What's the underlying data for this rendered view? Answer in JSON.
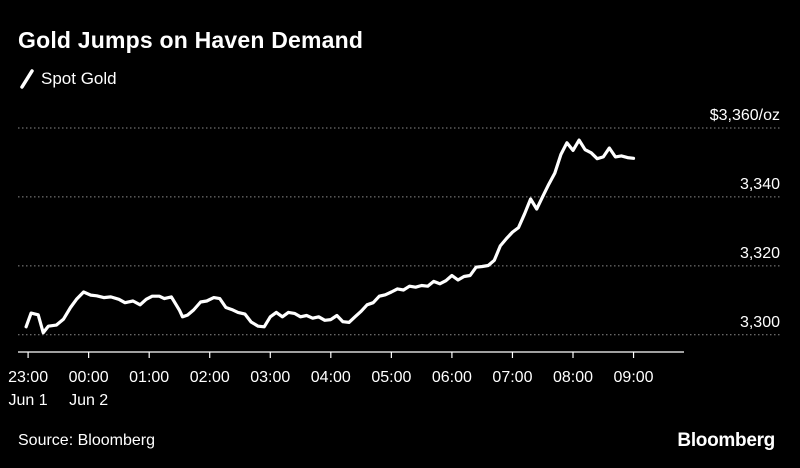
{
  "header": {
    "title": "Gold Jumps on Haven Demand",
    "legend_label": "Spot Gold"
  },
  "footer": {
    "source": "Source: Bloomberg",
    "brand": "Bloomberg"
  },
  "colors": {
    "background": "#000000",
    "line": "#ffffff",
    "grid": "#8a8a8a",
    "text": "#ffffff"
  },
  "chart_data": {
    "type": "line",
    "title": "Gold Jumps on Haven Demand",
    "series": [
      {
        "name": "Spot Gold",
        "points": [
          [
            "22:58",
            3302.3
          ],
          [
            "23:03",
            3306.3
          ],
          [
            "23:10",
            3305.8
          ],
          [
            "23:15",
            3300.6
          ],
          [
            "23:20",
            3302.5
          ],
          [
            "23:28",
            3302.8
          ],
          [
            "23:35",
            3304.5
          ],
          [
            "23:42",
            3307.9
          ],
          [
            "23:48",
            3310.3
          ],
          [
            "23:55",
            3312.4
          ],
          [
            "00:02",
            3311.5
          ],
          [
            "00:08",
            3311.3
          ],
          [
            "00:15",
            3310.8
          ],
          [
            "00:22",
            3311.0
          ],
          [
            "00:30",
            3310.3
          ],
          [
            "00:36",
            3309.3
          ],
          [
            "00:44",
            3309.8
          ],
          [
            "00:51",
            3308.7
          ],
          [
            "00:57",
            3310.3
          ],
          [
            "01:03",
            3311.2
          ],
          [
            "01:10",
            3311.2
          ],
          [
            "01:15",
            3310.5
          ],
          [
            "01:22",
            3311.0
          ],
          [
            "01:30",
            3307.1
          ],
          [
            "01:33",
            3305.2
          ],
          [
            "01:38",
            3305.7
          ],
          [
            "01:44",
            3307.2
          ],
          [
            "01:51",
            3309.5
          ],
          [
            "01:57",
            3309.8
          ],
          [
            "02:04",
            3310.8
          ],
          [
            "02:10",
            3310.5
          ],
          [
            "02:16",
            3307.9
          ],
          [
            "02:22",
            3307.3
          ],
          [
            "02:28",
            3306.5
          ],
          [
            "02:35",
            3306.0
          ],
          [
            "02:41",
            3303.7
          ],
          [
            "02:48",
            3302.5
          ],
          [
            "02:54",
            3302.3
          ],
          [
            "03:00",
            3305.2
          ],
          [
            "03:06",
            3306.5
          ],
          [
            "03:12",
            3305.2
          ],
          [
            "03:18",
            3306.5
          ],
          [
            "03:24",
            3306.2
          ],
          [
            "03:30",
            3305.2
          ],
          [
            "03:36",
            3305.6
          ],
          [
            "03:42",
            3304.8
          ],
          [
            "03:48",
            3305.2
          ],
          [
            "03:54",
            3304.2
          ],
          [
            "04:00",
            3304.4
          ],
          [
            "04:06",
            3305.6
          ],
          [
            "04:12",
            3303.8
          ],
          [
            "04:18",
            3303.6
          ],
          [
            "04:24",
            3305.2
          ],
          [
            "04:30",
            3306.8
          ],
          [
            "04:36",
            3308.7
          ],
          [
            "04:42",
            3309.3
          ],
          [
            "04:48",
            3311.2
          ],
          [
            "04:54",
            3311.6
          ],
          [
            "05:00",
            3312.4
          ],
          [
            "05:06",
            3313.3
          ],
          [
            "05:12",
            3313.0
          ],
          [
            "05:18",
            3314.1
          ],
          [
            "05:24",
            3313.8
          ],
          [
            "05:30",
            3314.3
          ],
          [
            "05:36",
            3314.1
          ],
          [
            "05:42",
            3315.5
          ],
          [
            "05:48",
            3314.8
          ],
          [
            "05:54",
            3315.7
          ],
          [
            "06:00",
            3317.2
          ],
          [
            "06:06",
            3315.9
          ],
          [
            "06:12",
            3316.9
          ],
          [
            "06:18",
            3317.2
          ],
          [
            "06:24",
            3319.6
          ],
          [
            "06:30",
            3319.8
          ],
          [
            "06:36",
            3320.1
          ],
          [
            "06:42",
            3321.6
          ],
          [
            "06:48",
            3325.8
          ],
          [
            "06:54",
            3327.9
          ],
          [
            "07:00",
            3329.8
          ],
          [
            "07:06",
            3331.1
          ],
          [
            "07:12",
            3335.1
          ],
          [
            "07:18",
            3339.4
          ],
          [
            "07:24",
            3336.5
          ],
          [
            "07:30",
            3340.1
          ],
          [
            "07:36",
            3343.7
          ],
          [
            "07:42",
            3346.9
          ],
          [
            "07:48",
            3352.3
          ],
          [
            "07:54",
            3355.7
          ],
          [
            "08:00",
            3353.5
          ],
          [
            "08:06",
            3356.5
          ],
          [
            "08:12",
            3353.7
          ],
          [
            "08:18",
            3352.8
          ],
          [
            "08:24",
            3351.1
          ],
          [
            "08:30",
            3351.6
          ],
          [
            "08:36",
            3354.2
          ],
          [
            "08:42",
            3351.6
          ],
          [
            "08:48",
            3351.9
          ],
          [
            "08:54",
            3351.4
          ],
          [
            "09:00",
            3351.2
          ]
        ]
      }
    ],
    "x_ticks": [
      {
        "time": "23:00",
        "label": "23:00",
        "sublabel": "Jun 1"
      },
      {
        "time": "00:00",
        "label": "00:00",
        "sublabel": "Jun 2"
      },
      {
        "time": "01:00",
        "label": "01:00",
        "sublabel": ""
      },
      {
        "time": "02:00",
        "label": "02:00",
        "sublabel": ""
      },
      {
        "time": "03:00",
        "label": "03:00",
        "sublabel": ""
      },
      {
        "time": "04:00",
        "label": "04:00",
        "sublabel": ""
      },
      {
        "time": "05:00",
        "label": "05:00",
        "sublabel": ""
      },
      {
        "time": "06:00",
        "label": "06:00",
        "sublabel": ""
      },
      {
        "time": "07:00",
        "label": "07:00",
        "sublabel": ""
      },
      {
        "time": "08:00",
        "label": "08:00",
        "sublabel": ""
      },
      {
        "time": "09:00",
        "label": "09:00",
        "sublabel": ""
      }
    ],
    "x_range": [
      "22:50",
      "09:50"
    ],
    "y_ticks": [
      {
        "value": 3300,
        "label": "3,300"
      },
      {
        "value": 3320,
        "label": "3,320"
      },
      {
        "value": 3340,
        "label": "3,340"
      },
      {
        "value": 3360,
        "label": "$3,360/oz"
      }
    ],
    "ylim": [
      3295,
      3360
    ],
    "grid": "horizontal-dotted",
    "legend": "top-left",
    "y_axis_side": "right"
  }
}
